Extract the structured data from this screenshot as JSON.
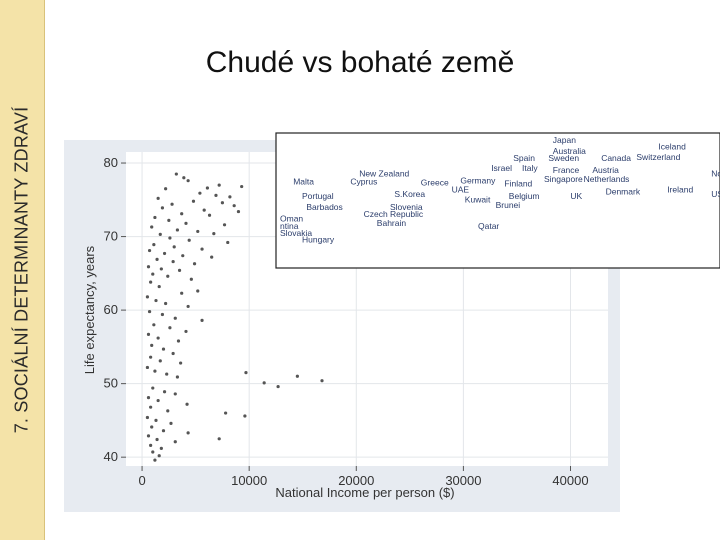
{
  "sidebar": {
    "label": "7. SOCIÁLNÍ DETERMINANTY ZDRAVÍ",
    "color": "#f4e3a8"
  },
  "slide": {
    "title": "Chudé vs bohaté země"
  },
  "chart_data": {
    "type": "scatter",
    "title": "",
    "xlabel": "National Income per person ($)",
    "ylabel": "Life expectancy, years",
    "xlim": [
      -1500,
      43500
    ],
    "ylim": [
      38.8,
      81.5
    ],
    "xticks": [
      0,
      10000,
      20000,
      30000,
      40000
    ],
    "xtick_labels": [
      "0",
      "10000",
      "20000",
      "30000",
      "40000"
    ],
    "yticks": [
      40,
      50,
      60,
      70,
      80
    ],
    "ytick_labels": [
      "40",
      "50",
      "60",
      "70",
      "80"
    ],
    "grid": true,
    "plot_background": "#ffffff",
    "outer_background": "#e7ebf1",
    "point_color": "#555555",
    "points": [
      {
        "x": 3200,
        "y": 78.5
      },
      {
        "x": 3900,
        "y": 78.0
      },
      {
        "x": 4300,
        "y": 77.6
      },
      {
        "x": 7200,
        "y": 77.0
      },
      {
        "x": 6100,
        "y": 76.6
      },
      {
        "x": 2200,
        "y": 76.5
      },
      {
        "x": 5400,
        "y": 75.9
      },
      {
        "x": 6900,
        "y": 75.6
      },
      {
        "x": 8200,
        "y": 75.4
      },
      {
        "x": 9300,
        "y": 76.8
      },
      {
        "x": 1500,
        "y": 75.2
      },
      {
        "x": 4800,
        "y": 74.8
      },
      {
        "x": 7500,
        "y": 74.6
      },
      {
        "x": 8600,
        "y": 74.2
      },
      {
        "x": 2800,
        "y": 74.4
      },
      {
        "x": 1900,
        "y": 73.9
      },
      {
        "x": 5800,
        "y": 73.6
      },
      {
        "x": 9000,
        "y": 73.4
      },
      {
        "x": 3700,
        "y": 73.1
      },
      {
        "x": 6300,
        "y": 72.9
      },
      {
        "x": 1200,
        "y": 72.6
      },
      {
        "x": 2500,
        "y": 72.2
      },
      {
        "x": 4100,
        "y": 71.8
      },
      {
        "x": 7700,
        "y": 71.6
      },
      {
        "x": 900,
        "y": 71.3
      },
      {
        "x": 3300,
        "y": 70.9
      },
      {
        "x": 5200,
        "y": 70.7
      },
      {
        "x": 6700,
        "y": 70.4
      },
      {
        "x": 1700,
        "y": 70.3
      },
      {
        "x": 2600,
        "y": 69.8
      },
      {
        "x": 4400,
        "y": 69.5
      },
      {
        "x": 8000,
        "y": 69.2
      },
      {
        "x": 1100,
        "y": 68.9
      },
      {
        "x": 3000,
        "y": 68.6
      },
      {
        "x": 5600,
        "y": 68.3
      },
      {
        "x": 700,
        "y": 68.1
      },
      {
        "x": 2100,
        "y": 67.7
      },
      {
        "x": 3800,
        "y": 67.4
      },
      {
        "x": 6500,
        "y": 67.2
      },
      {
        "x": 1400,
        "y": 66.9
      },
      {
        "x": 2900,
        "y": 66.6
      },
      {
        "x": 4900,
        "y": 66.3
      },
      {
        "x": 600,
        "y": 65.9
      },
      {
        "x": 1800,
        "y": 65.6
      },
      {
        "x": 3500,
        "y": 65.4
      },
      {
        "x": 1000,
        "y": 64.9
      },
      {
        "x": 2400,
        "y": 64.6
      },
      {
        "x": 4600,
        "y": 64.2
      },
      {
        "x": 800,
        "y": 63.8
      },
      {
        "x": 1600,
        "y": 63.2
      },
      {
        "x": 5200,
        "y": 62.6
      },
      {
        "x": 3700,
        "y": 62.3
      },
      {
        "x": 500,
        "y": 61.8
      },
      {
        "x": 1300,
        "y": 61.3
      },
      {
        "x": 2200,
        "y": 60.9
      },
      {
        "x": 4300,
        "y": 60.5
      },
      {
        "x": 700,
        "y": 59.8
      },
      {
        "x": 1900,
        "y": 59.4
      },
      {
        "x": 3100,
        "y": 58.9
      },
      {
        "x": 5600,
        "y": 58.6
      },
      {
        "x": 1100,
        "y": 58.0
      },
      {
        "x": 2600,
        "y": 57.6
      },
      {
        "x": 4100,
        "y": 57.1
      },
      {
        "x": 600,
        "y": 56.7
      },
      {
        "x": 1500,
        "y": 56.2
      },
      {
        "x": 3400,
        "y": 55.8
      },
      {
        "x": 900,
        "y": 55.2
      },
      {
        "x": 2000,
        "y": 54.7
      },
      {
        "x": 2900,
        "y": 54.1
      },
      {
        "x": 800,
        "y": 53.6
      },
      {
        "x": 1700,
        "y": 53.1
      },
      {
        "x": 3600,
        "y": 52.8
      },
      {
        "x": 500,
        "y": 52.2
      },
      {
        "x": 1200,
        "y": 51.7
      },
      {
        "x": 2300,
        "y": 51.3
      },
      {
        "x": 3300,
        "y": 50.9
      },
      {
        "x": 9700,
        "y": 51.5
      },
      {
        "x": 14500,
        "y": 51.0
      },
      {
        "x": 16800,
        "y": 50.4
      },
      {
        "x": 11400,
        "y": 50.1
      },
      {
        "x": 12700,
        "y": 49.6
      },
      {
        "x": 1000,
        "y": 49.4
      },
      {
        "x": 2100,
        "y": 48.9
      },
      {
        "x": 3100,
        "y": 48.6
      },
      {
        "x": 600,
        "y": 48.1
      },
      {
        "x": 1500,
        "y": 47.7
      },
      {
        "x": 4200,
        "y": 47.2
      },
      {
        "x": 800,
        "y": 46.8
      },
      {
        "x": 2400,
        "y": 46.3
      },
      {
        "x": 7800,
        "y": 46.0
      },
      {
        "x": 9600,
        "y": 45.6
      },
      {
        "x": 500,
        "y": 45.4
      },
      {
        "x": 1300,
        "y": 45.0
      },
      {
        "x": 2700,
        "y": 44.6
      },
      {
        "x": 900,
        "y": 44.1
      },
      {
        "x": 2000,
        "y": 43.6
      },
      {
        "x": 4300,
        "y": 43.3
      },
      {
        "x": 600,
        "y": 42.9
      },
      {
        "x": 1400,
        "y": 42.4
      },
      {
        "x": 7200,
        "y": 42.5
      },
      {
        "x": 3100,
        "y": 42.1
      },
      {
        "x": 800,
        "y": 41.6
      },
      {
        "x": 1800,
        "y": 41.2
      },
      {
        "x": 1000,
        "y": 40.7
      },
      {
        "x": 1600,
        "y": 40.2
      },
      {
        "x": 1200,
        "y": 39.6
      }
    ]
  },
  "inset": {
    "labels": [
      {
        "text": "Japan",
        "row": 0,
        "col": 0.62
      },
      {
        "text": "Iceland",
        "row": 0.6,
        "col": 0.86
      },
      {
        "text": "Australia",
        "row": 1,
        "col": 0.62
      },
      {
        "text": "Spain",
        "row": 1.6,
        "col": 0.53
      },
      {
        "text": "Sweden",
        "row": 1.6,
        "col": 0.61
      },
      {
        "text": "Canada",
        "row": 1.6,
        "col": 0.73
      },
      {
        "text": "Switzerland",
        "row": 1.5,
        "col": 0.81
      },
      {
        "text": "Israel",
        "row": 2.5,
        "col": 0.48
      },
      {
        "text": "Italy",
        "row": 2.5,
        "col": 0.55
      },
      {
        "text": "France",
        "row": 2.7,
        "col": 0.62
      },
      {
        "text": "Austria",
        "row": 2.7,
        "col": 0.71
      },
      {
        "text": "Norw",
        "row": 3.0,
        "col": 0.98
      },
      {
        "text": "New Zealand",
        "row": 3.0,
        "col": 0.18
      },
      {
        "text": "Singapore",
        "row": 3.5,
        "col": 0.6
      },
      {
        "text": "Netherlands",
        "row": 3.5,
        "col": 0.69
      },
      {
        "text": "Malta",
        "row": 3.7,
        "col": 0.03
      },
      {
        "text": "Cyprus",
        "row": 3.7,
        "col": 0.16
      },
      {
        "text": "Greece",
        "row": 3.8,
        "col": 0.32
      },
      {
        "text": "Germany",
        "row": 3.6,
        "col": 0.41
      },
      {
        "text": "Finland",
        "row": 3.9,
        "col": 0.51
      },
      {
        "text": "UAE",
        "row": 4.4,
        "col": 0.39
      },
      {
        "text": "Ireland",
        "row": 4.4,
        "col": 0.88
      },
      {
        "text": "Denmark",
        "row": 4.6,
        "col": 0.74
      },
      {
        "text": "USA",
        "row": 4.8,
        "col": 0.98
      },
      {
        "text": "Portugal",
        "row": 5.0,
        "col": 0.05
      },
      {
        "text": "S.Korea",
        "row": 4.8,
        "col": 0.26
      },
      {
        "text": "Belgium",
        "row": 5.0,
        "col": 0.52
      },
      {
        "text": "UK",
        "row": 5.0,
        "col": 0.66
      },
      {
        "text": "Kuwait",
        "row": 5.3,
        "col": 0.42
      },
      {
        "text": "Brunei",
        "row": 5.8,
        "col": 0.49
      },
      {
        "text": "Barbados",
        "row": 6.0,
        "col": 0.06
      },
      {
        "text": "Slovenia",
        "row": 6.0,
        "col": 0.25
      },
      {
        "text": "Czech Republic",
        "row": 6.6,
        "col": 0.19
      },
      {
        "text": "Oman",
        "row": 7.0,
        "col": 0.0
      },
      {
        "text": "Bahrain",
        "row": 7.4,
        "col": 0.22
      },
      {
        "text": "Qatar",
        "row": 7.7,
        "col": 0.45
      },
      {
        "text": "ntina",
        "row": 7.7,
        "col": 0.0
      },
      {
        "text": "Slovakia",
        "row": 8.3,
        "col": 0.0
      },
      {
        "text": "Hungary",
        "row": 8.9,
        "col": 0.05
      }
    ]
  }
}
